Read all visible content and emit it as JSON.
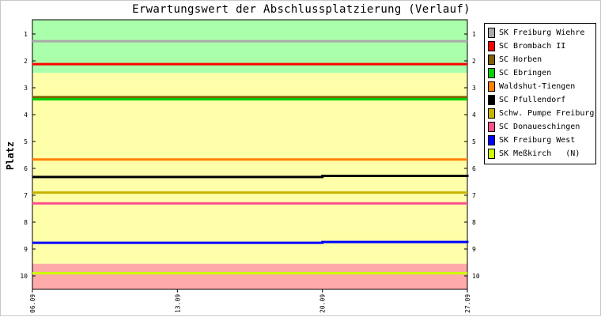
{
  "chart_data": {
    "type": "line",
    "title": "Erwartungswert der Abschlussplatzierung (Verlauf)",
    "ylabel": "Platz",
    "xlabel": "",
    "ylim": [
      1,
      10
    ],
    "y_inverted": true,
    "yticks": [
      "1",
      "2",
      "3",
      "4",
      "5",
      "6",
      "7",
      "8",
      "9",
      "10"
    ],
    "x": [
      "06.09",
      "13.09",
      "20.09",
      "27.09"
    ],
    "grid": false,
    "legend_position": "right",
    "bands": [
      {
        "from": 0.2,
        "to": 2.45,
        "color": "#aaffaa"
      },
      {
        "from": 2.45,
        "to": 9.55,
        "color": "#ffffaa"
      },
      {
        "from": 9.55,
        "to": 10.55,
        "color": "#ffaaaa"
      }
    ],
    "series": [
      {
        "name": "SK Freiburg Wiehre",
        "color": "#aaaaaa",
        "values": [
          1.27,
          1.27,
          1.27,
          1.27
        ]
      },
      {
        "name": "SC Brombach II",
        "color": "#ff0000",
        "values": [
          2.12,
          2.12,
          2.12,
          2.12
        ]
      },
      {
        "name": "SC Horben",
        "color": "#806000",
        "values": [
          3.35,
          3.35,
          3.35,
          3.35
        ]
      },
      {
        "name": "SC Ebringen",
        "color": "#00d000",
        "values": [
          3.43,
          3.43,
          3.43,
          3.43
        ]
      },
      {
        "name": "Waldshut-Tiengen",
        "color": "#ff8000",
        "values": [
          5.67,
          5.67,
          5.67,
          5.67
        ]
      },
      {
        "name": "SC Pfullendorf",
        "color": "#000000",
        "values": [
          6.32,
          6.32,
          6.28,
          6.32
        ]
      },
      {
        "name": "Schw. Pumpe Freiburg",
        "color": "#c8b400",
        "values": [
          6.9,
          6.9,
          6.9,
          6.9
        ]
      },
      {
        "name": "SC Donaueschingen",
        "color": "#ff4f8f",
        "values": [
          7.3,
          7.3,
          7.3,
          7.3
        ]
      },
      {
        "name": "SK Freiburg West",
        "color": "#0000ff",
        "values": [
          8.77,
          8.77,
          8.74,
          8.77
        ]
      },
      {
        "name": "SK Meßkirch   (N)",
        "color": "#ccff00",
        "values": [
          9.9,
          9.9,
          9.9,
          9.9
        ]
      }
    ]
  }
}
